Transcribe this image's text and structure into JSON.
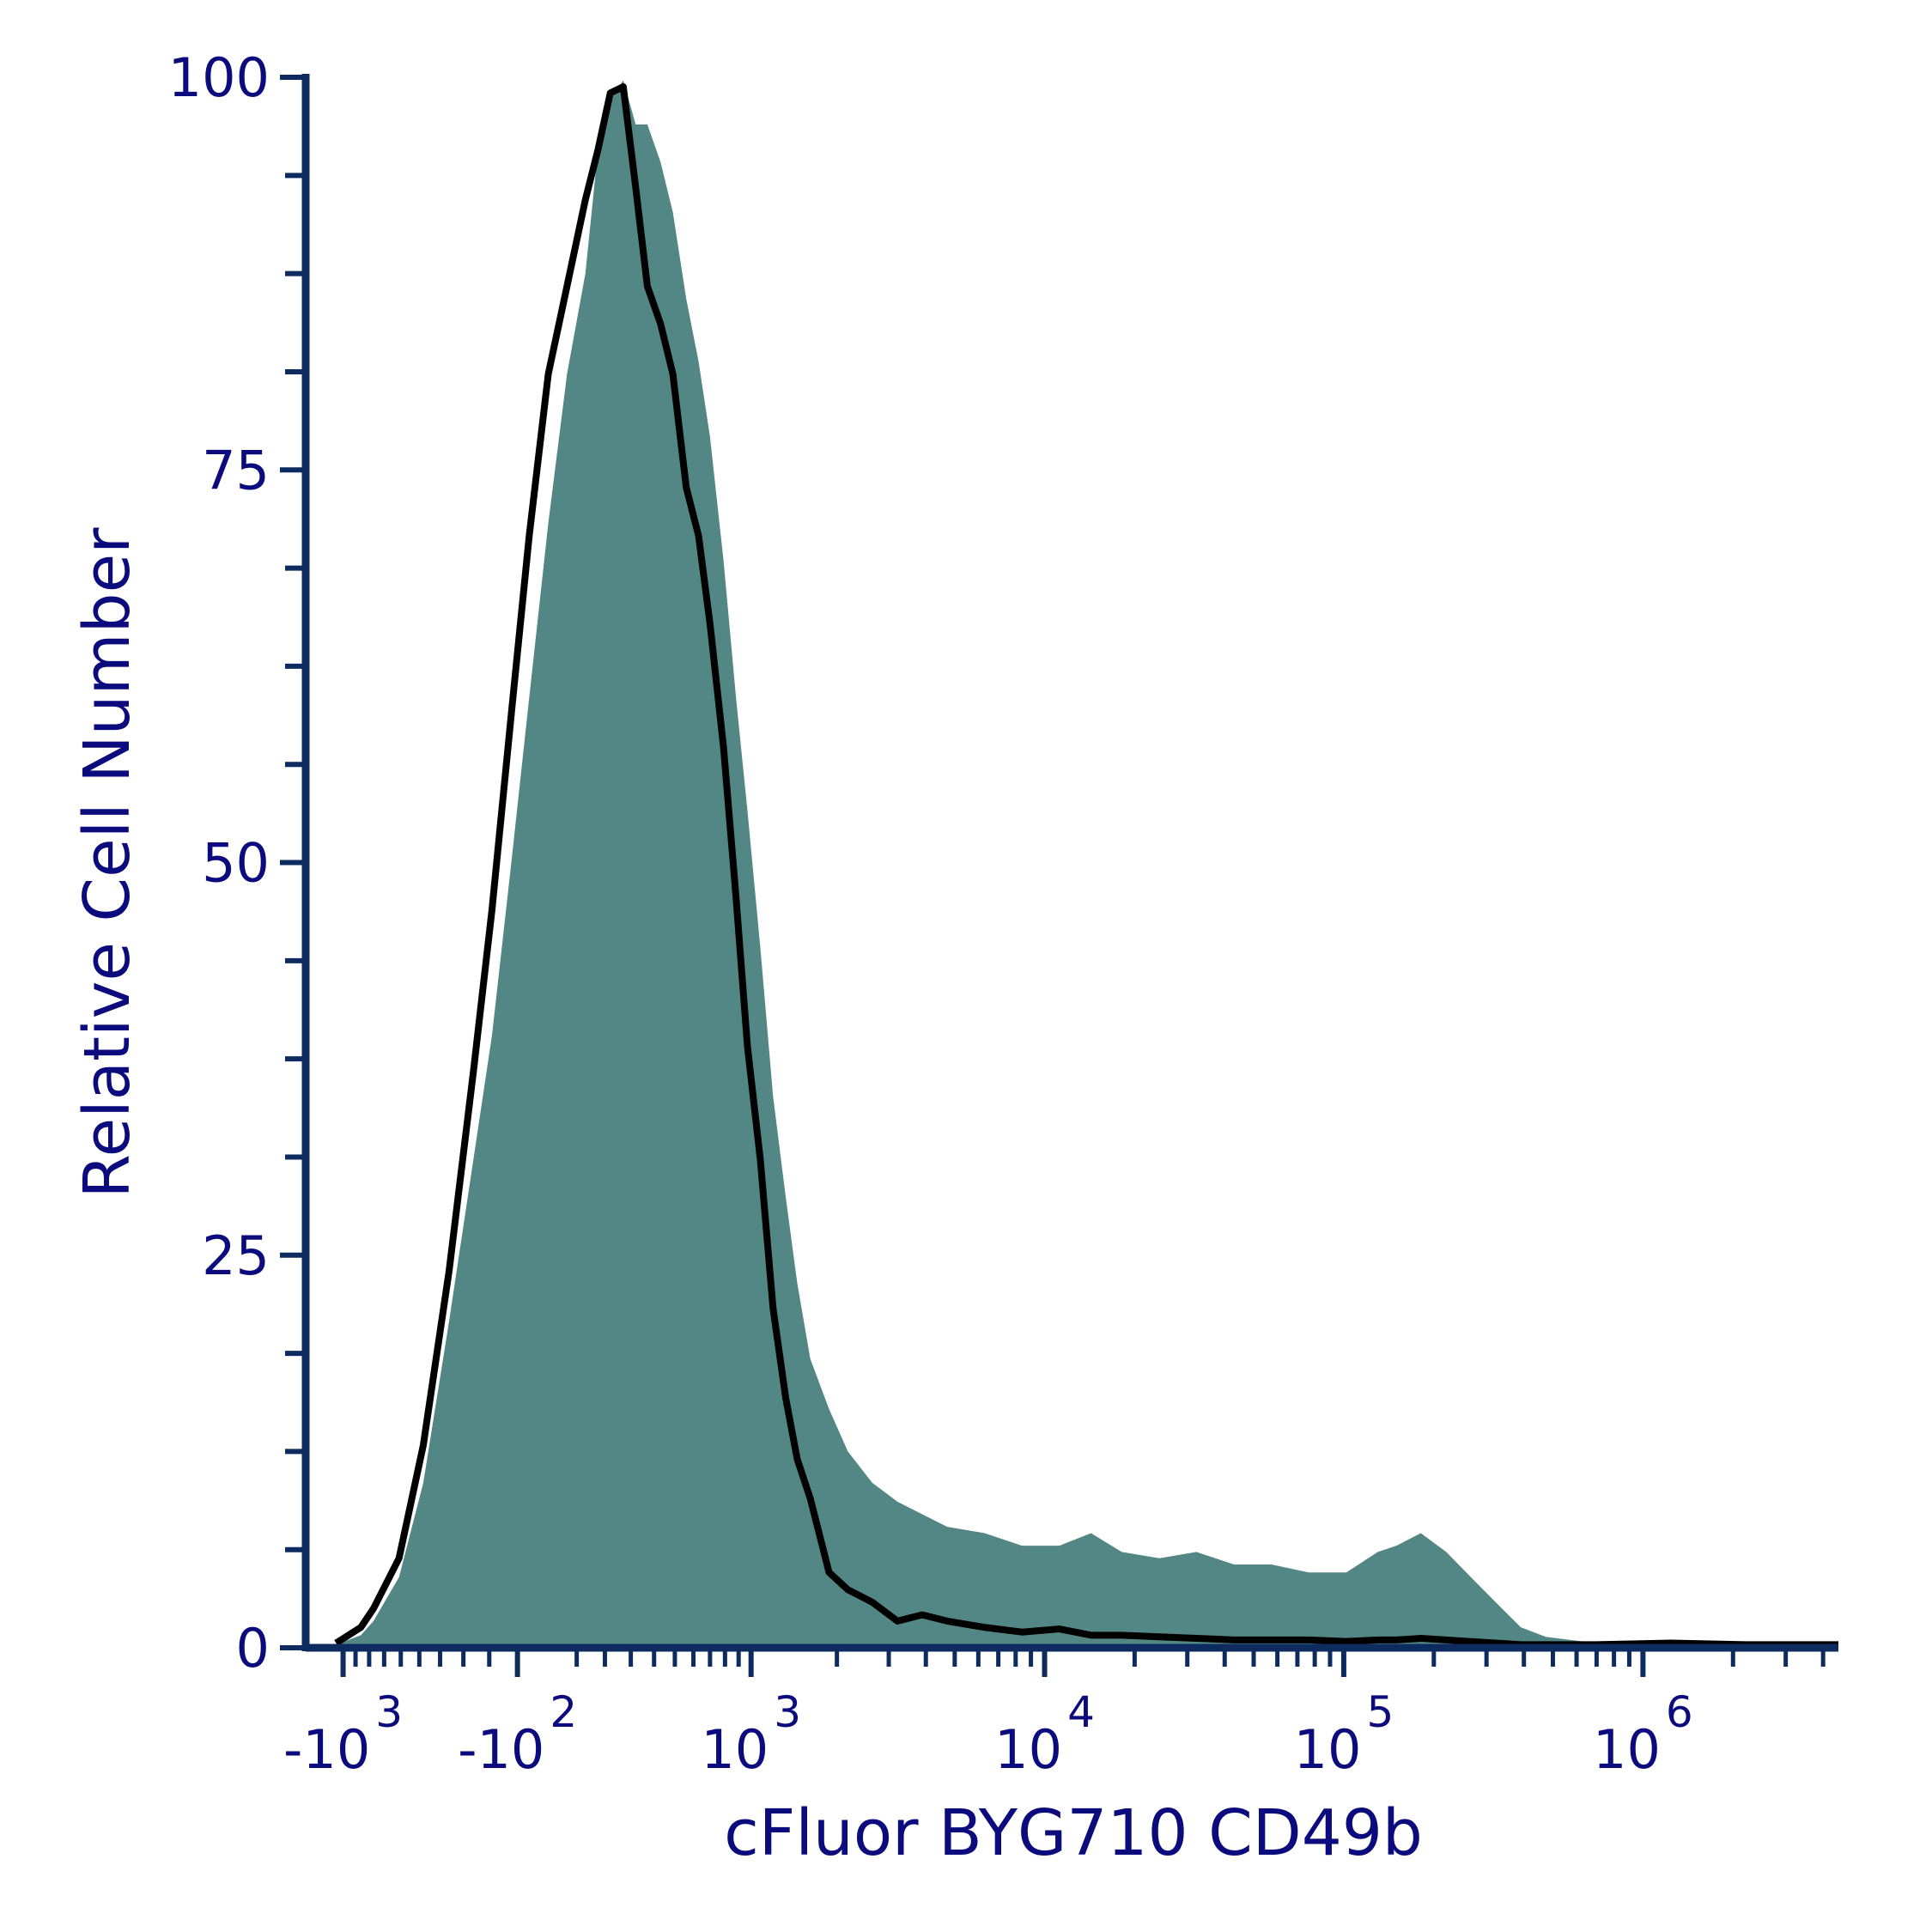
{
  "chart_data": {
    "type": "histogram",
    "x_label": "cFluor BYG710 CD49b",
    "y_label": "Relative Cell Number",
    "x_scale": "asinh",
    "xlim": [
      -1360,
      4500000
    ],
    "xticks": [
      {
        "value": -1000,
        "label": "-10^3"
      },
      {
        "value": -100,
        "label": "-10^2"
      },
      {
        "value": 1000,
        "label": "10^3"
      },
      {
        "value": 10000,
        "label": "10^4"
      },
      {
        "value": 100000,
        "label": "10^5"
      },
      {
        "value": 1000000,
        "label": "10^6"
      }
    ],
    "x_minor_ticks": [
      -900,
      -800,
      -700,
      -600,
      -500,
      -400,
      -300,
      -200,
      100,
      200,
      300,
      400,
      500,
      600,
      700,
      800,
      900,
      2000,
      3000,
      4000,
      5000,
      6000,
      7000,
      8000,
      9000,
      20000,
      30000,
      40000,
      50000,
      60000,
      70000,
      80000,
      90000,
      200000,
      300000,
      400000,
      500000,
      600000,
      700000,
      800000,
      900000,
      2000000,
      3000000,
      4000000
    ],
    "ylim": [
      0,
      100
    ],
    "yticks": [
      0,
      25,
      50,
      75,
      100
    ],
    "y_minor_ticks": [
      6.25,
      12.5,
      18.75,
      31.25,
      37.5,
      43.75,
      56.25,
      62.5,
      68.75,
      81.25,
      87.5,
      93.75
    ],
    "axis_color": "#0d2b5e",
    "x": [
      -1060,
      -860,
      -770,
      -610,
      -480,
      -360,
      -260,
      -190,
      -120,
      -60,
      4,
      67,
      130,
      175,
      220,
      270,
      320,
      370,
      430,
      490,
      560,
      630,
      700,
      790,
      880,
      970,
      1080,
      1200,
      1330,
      1460,
      1620,
      1880,
      2180,
      2640,
      3210,
      3890,
      4720,
      6300,
      8400,
      11200,
      14300,
      18100,
      24200,
      32200,
      43000,
      57300,
      76400,
      102000,
      130000,
      150000,
      181000,
      220000,
      266000,
      322000,
      391000,
      473000,
      695000,
      1240000,
      2200000,
      4500000
    ],
    "series": [
      {
        "style": "area",
        "color": "#528785",
        "values": [
          0.2,
          0.8,
          1.7,
          4.5,
          10.5,
          20.8,
          31.1,
          39.0,
          50.2,
          60.5,
          71.6,
          81.1,
          87.5,
          95.4,
          98.6,
          99.8,
          97.0,
          97.0,
          94.6,
          91.4,
          85.9,
          81.9,
          77.1,
          69.2,
          60.5,
          53.3,
          44.6,
          35.1,
          28.7,
          23.2,
          18.4,
          15.2,
          12.5,
          10.5,
          9.3,
          8.5,
          7.7,
          7.3,
          6.5,
          6.5,
          7.3,
          6.1,
          5.7,
          6.1,
          5.3,
          5.3,
          4.8,
          4.8,
          6.1,
          6.5,
          7.3,
          6.1,
          4.5,
          2.9,
          1.3,
          0.7,
          0.3,
          0.2,
          0.2,
          0.2
        ]
      },
      {
        "style": "line",
        "color": "#000000",
        "values": [
          0.3,
          1.3,
          2.5,
          5.7,
          12.9,
          24.0,
          36.7,
          47.0,
          59.7,
          70.8,
          81.1,
          86.7,
          92.2,
          95.4,
          99.0,
          99.4,
          93.0,
          86.7,
          84.3,
          81.1,
          73.9,
          70.8,
          65.2,
          57.3,
          47.8,
          38.3,
          31.1,
          21.6,
          15.9,
          12.0,
          9.5,
          4.8,
          3.7,
          2.9,
          1.7,
          2.1,
          1.7,
          1.3,
          1.0,
          1.2,
          0.8,
          0.8,
          0.7,
          0.6,
          0.5,
          0.5,
          0.5,
          0.4,
          0.5,
          0.5,
          0.6,
          0.5,
          0.4,
          0.3,
          0.2,
          0.2,
          0.2,
          0.3,
          0.2,
          0.2
        ]
      }
    ]
  }
}
